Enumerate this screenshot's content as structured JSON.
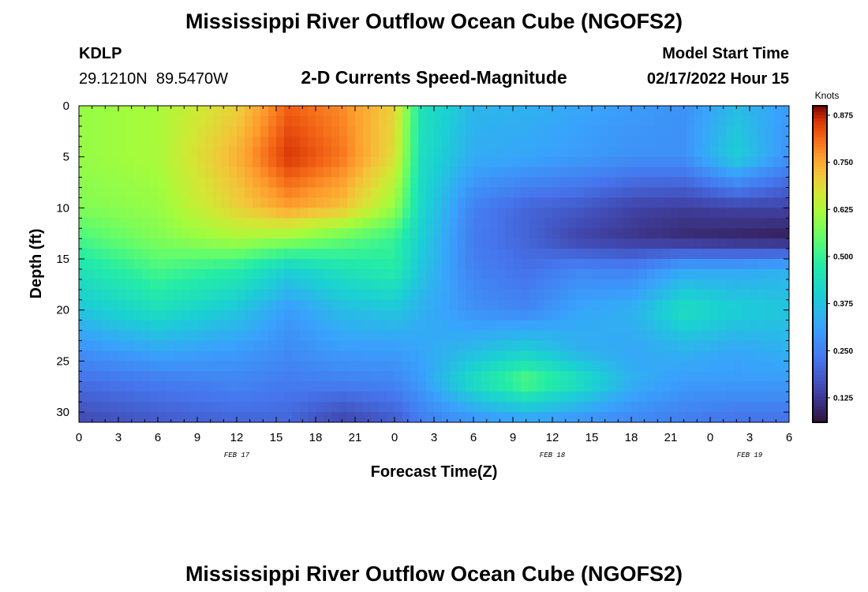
{
  "page": {
    "title_top": "Mississippi River Outflow Ocean Cube (NGOFS2)",
    "title_bottom": "Mississippi River Outflow Ocean Cube (NGOFS2)"
  },
  "station": {
    "id": "KDLP",
    "coords": "29.1210N  89.5470W"
  },
  "model": {
    "start_label": "Model Start Time",
    "start_value": "02/17/2022 Hour 15"
  },
  "chart_data": {
    "type": "heatmap",
    "title": "2-D Currents Speed-Magnitude",
    "xlabel": "Forecast Time(Z)",
    "ylabel": "Depth (ft)",
    "x_range_hours": [
      0,
      54
    ],
    "y_range_ft": [
      0,
      31
    ],
    "y_inverted": true,
    "x_tick_labels": [
      "0",
      "3",
      "6",
      "9",
      "12",
      "15",
      "18",
      "21",
      "0",
      "3",
      "6",
      "9",
      "12",
      "15",
      "18",
      "21",
      "0",
      "3",
      "6"
    ],
    "y_tick_labels": [
      "0",
      "5",
      "10",
      "15",
      "20",
      "25",
      "30"
    ],
    "y_tick_values": [
      0,
      5,
      10,
      15,
      20,
      25,
      30
    ],
    "date_labels": [
      {
        "label": "FEB 17",
        "hour": 12
      },
      {
        "label": "FEB 18",
        "hour": 36
      },
      {
        "label": "FEB 19",
        "hour": 51
      }
    ],
    "colorbar": {
      "title": "Knots",
      "min": 0.06,
      "max": 0.9,
      "ticks": [
        "0.875",
        "0.750",
        "0.625",
        "0.500",
        "0.375",
        "0.250",
        "0.125"
      ],
      "tick_values": [
        0.875,
        0.75,
        0.625,
        0.5,
        0.375,
        0.25,
        0.125
      ],
      "colormap": "turbo"
    },
    "value_depths_ft": [
      0,
      5,
      10,
      13,
      16,
      20,
      24,
      27,
      31
    ],
    "value_hours": [
      0,
      6,
      12,
      16,
      20,
      24,
      26,
      30,
      34,
      38,
      42,
      46,
      50,
      54
    ],
    "values": [
      [
        0.6,
        0.62,
        0.7,
        0.82,
        0.78,
        0.7,
        0.45,
        0.35,
        0.34,
        0.32,
        0.3,
        0.28,
        0.36,
        0.3
      ],
      [
        0.6,
        0.62,
        0.74,
        0.86,
        0.8,
        0.68,
        0.44,
        0.33,
        0.32,
        0.3,
        0.28,
        0.28,
        0.4,
        0.28
      ],
      [
        0.58,
        0.6,
        0.7,
        0.76,
        0.72,
        0.6,
        0.42,
        0.25,
        0.2,
        0.18,
        0.14,
        0.13,
        0.14,
        0.14
      ],
      [
        0.52,
        0.58,
        0.62,
        0.6,
        0.55,
        0.5,
        0.4,
        0.24,
        0.2,
        0.14,
        0.12,
        0.1,
        0.09,
        0.08
      ],
      [
        0.45,
        0.52,
        0.48,
        0.4,
        0.45,
        0.48,
        0.38,
        0.25,
        0.22,
        0.26,
        0.25,
        0.32,
        0.32,
        0.34
      ],
      [
        0.38,
        0.44,
        0.38,
        0.3,
        0.36,
        0.38,
        0.34,
        0.28,
        0.26,
        0.32,
        0.34,
        0.44,
        0.4,
        0.38
      ],
      [
        0.28,
        0.32,
        0.3,
        0.27,
        0.3,
        0.3,
        0.32,
        0.36,
        0.4,
        0.34,
        0.32,
        0.34,
        0.32,
        0.34
      ],
      [
        0.22,
        0.24,
        0.26,
        0.24,
        0.25,
        0.26,
        0.3,
        0.44,
        0.54,
        0.45,
        0.34,
        0.3,
        0.3,
        0.3
      ],
      [
        0.15,
        0.18,
        0.2,
        0.2,
        0.14,
        0.18,
        0.24,
        0.28,
        0.3,
        0.28,
        0.26,
        0.24,
        0.22,
        0.22
      ]
    ]
  }
}
